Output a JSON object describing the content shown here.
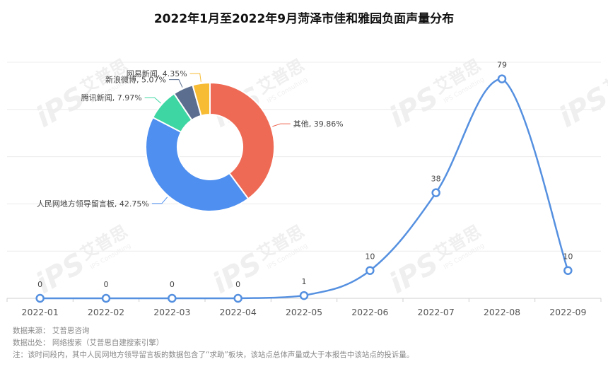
{
  "title": "2022年1月至2022年9月菏泽市佳和雅园负面声量分布",
  "chart_data": [
    {
      "type": "line",
      "categories": [
        "2022-01",
        "2022-02",
        "2022-03",
        "2022-04",
        "2022-05",
        "2022-06",
        "2022-07",
        "2022-08",
        "2022-09"
      ],
      "values": [
        0,
        0,
        0,
        0,
        1,
        10,
        38,
        79,
        10
      ],
      "ylim": [
        0,
        85
      ],
      "grid": true,
      "color": "#5590e0"
    },
    {
      "type": "pie",
      "donut": true,
      "slices": [
        {
          "label": "其他, 39.86%",
          "value": 39.86,
          "color": "#ee6a55"
        },
        {
          "label": "人民网地方领导留言板, 42.75%",
          "value": 42.75,
          "color": "#4e8ff0"
        },
        {
          "label": "腾讯新闻, 7.97%",
          "value": 7.97,
          "color": "#3ed6a2"
        },
        {
          "label": "新浪微博, 5.07%",
          "value": 5.07,
          "color": "#5b6e8f"
        },
        {
          "label": "网易新闻, 4.35%",
          "value": 4.35,
          "color": "#f7bc34"
        }
      ]
    }
  ],
  "notes": {
    "source": "数据来源： 艾普思咨询",
    "origin": "数据出处： 网络搜索（艾普思自建搜索引擎）",
    "remark": "注：该时间段内，其中人民网地方领导留言板的数据包含了“求助”板块，该站点总体声量或大于本报告中该站点的投诉量。"
  },
  "watermark": {
    "brand": "iPS",
    "cn": "艾普思",
    "en": "IPS Consulting"
  }
}
